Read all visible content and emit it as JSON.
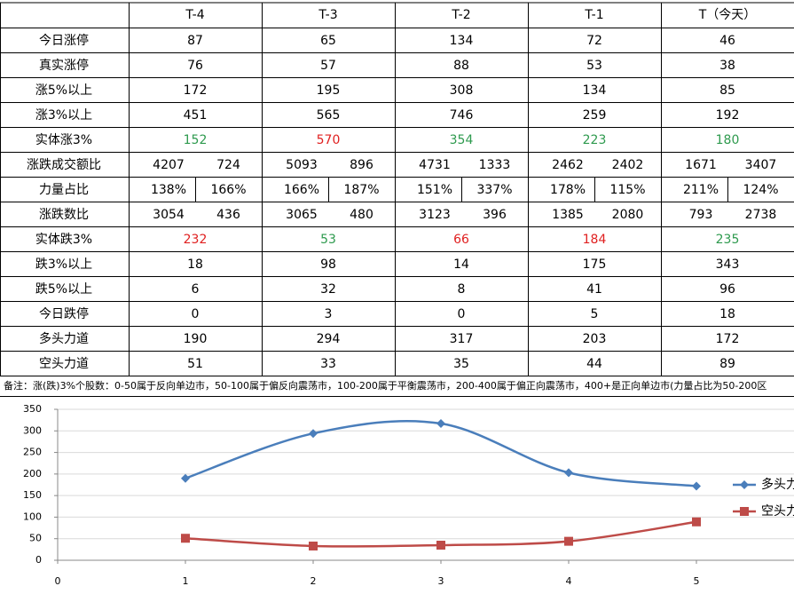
{
  "table": {
    "header": [
      "T-4",
      "T-3",
      "T-2",
      "T-1",
      "T（今天）"
    ],
    "rows": [
      {
        "label": "今日涨停",
        "cells": [
          87,
          65,
          134,
          72,
          46
        ]
      },
      {
        "label": "真实涨停",
        "cells": [
          76,
          57,
          88,
          53,
          38
        ]
      },
      {
        "label": "涨5%以上",
        "cells": [
          172,
          195,
          308,
          134,
          85
        ]
      },
      {
        "label": "涨3%以上",
        "cells": [
          451,
          565,
          746,
          259,
          192
        ]
      },
      {
        "label": "实体涨3%",
        "cells": [
          152,
          570,
          354,
          223,
          180
        ],
        "colors": [
          "#2e9a4e",
          "#e02020",
          "#2e9a4e",
          "#2e9a4e",
          "#2e9a4e"
        ]
      },
      {
        "label": "涨跌成交额比",
        "cells": [
          [
            4207,
            724
          ],
          [
            5093,
            896
          ],
          [
            4731,
            1333
          ],
          [
            2462,
            2402
          ],
          [
            1671,
            3407
          ]
        ]
      },
      {
        "label": "力量占比",
        "cells": [
          [
            "138%",
            "166%"
          ],
          [
            "166%",
            "187%"
          ],
          [
            "151%",
            "337%"
          ],
          [
            "178%",
            "115%"
          ],
          [
            "211%",
            "124%"
          ]
        ],
        "divided": true
      },
      {
        "label": "涨跌数比",
        "cells": [
          [
            3054,
            436
          ],
          [
            3065,
            480
          ],
          [
            3123,
            396
          ],
          [
            1385,
            2080
          ],
          [
            793,
            2738
          ]
        ]
      },
      {
        "label": "实体跌3%",
        "cells": [
          232,
          53,
          66,
          184,
          235
        ],
        "colors": [
          "#e02020",
          "#2e9a4e",
          "#e02020",
          "#e02020",
          "#2e9a4e"
        ]
      },
      {
        "label": "跌3%以上",
        "cells": [
          18,
          98,
          14,
          175,
          343
        ]
      },
      {
        "label": "跌5%以上",
        "cells": [
          6,
          32,
          8,
          41,
          96
        ]
      },
      {
        "label": "今日跌停",
        "cells": [
          0,
          3,
          0,
          5,
          18
        ]
      },
      {
        "label": "多头力道",
        "cells": [
          190,
          294,
          317,
          203,
          172
        ]
      },
      {
        "label": "空头力道",
        "cells": [
          51,
          33,
          35,
          44,
          89
        ]
      }
    ]
  },
  "note": "备注：涨(跌)3%个股数：0-50属于反向单边市，50-100属于偏反向震荡市，100-200属于平衡震荡市，200-400属于偏正向震荡市，400+是正向单边市(力量占比为50-200区",
  "chart_data": {
    "type": "line",
    "x": [
      1,
      2,
      3,
      4,
      5
    ],
    "series": [
      {
        "name": "多头力道",
        "color": "#4a7ebb",
        "marker": "diamond",
        "values": [
          190,
          294,
          317,
          203,
          172
        ]
      },
      {
        "name": "空头力道",
        "color": "#be4b48",
        "marker": "square",
        "values": [
          51,
          33,
          35,
          44,
          89
        ]
      }
    ],
    "xlim": [
      0,
      6
    ],
    "xticks": [
      0,
      1,
      2,
      3,
      4,
      5
    ],
    "ylim": [
      0,
      350
    ],
    "yticks": [
      0,
      50,
      100,
      150,
      200,
      250,
      300,
      350
    ],
    "grid": true,
    "smooth": true
  }
}
